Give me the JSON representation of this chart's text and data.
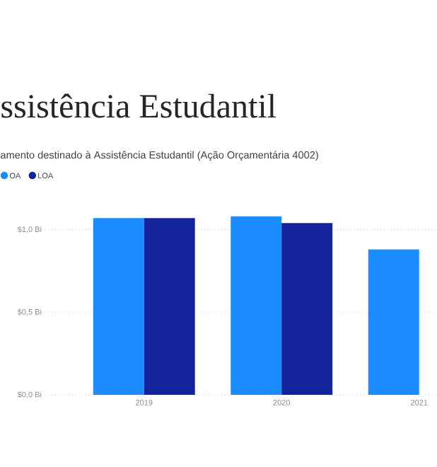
{
  "chart_data": {
    "type": "bar",
    "title": "ssistência Estudantil",
    "subtitle": "amento destinado à Assistência Estudantil (Ação Orçamentária 4002)",
    "categories": [
      "2019",
      "2020",
      "2021"
    ],
    "series": [
      {
        "name": "OA",
        "color": "#1a8cff",
        "values": [
          1.07,
          1.08,
          0.88
        ]
      },
      {
        "name": "LOA",
        "color": "#13239b",
        "values": [
          1.07,
          1.04,
          null
        ]
      }
    ],
    "ylim": [
      0,
      1.1
    ],
    "yticks": [
      {
        "value": 0,
        "label": "$0,0 Bi"
      },
      {
        "value": 0.5,
        "label": "$0,5 Bi"
      },
      {
        "value": 1,
        "label": "$1,0 Bi"
      }
    ],
    "grid": "y",
    "legend": "top left"
  }
}
